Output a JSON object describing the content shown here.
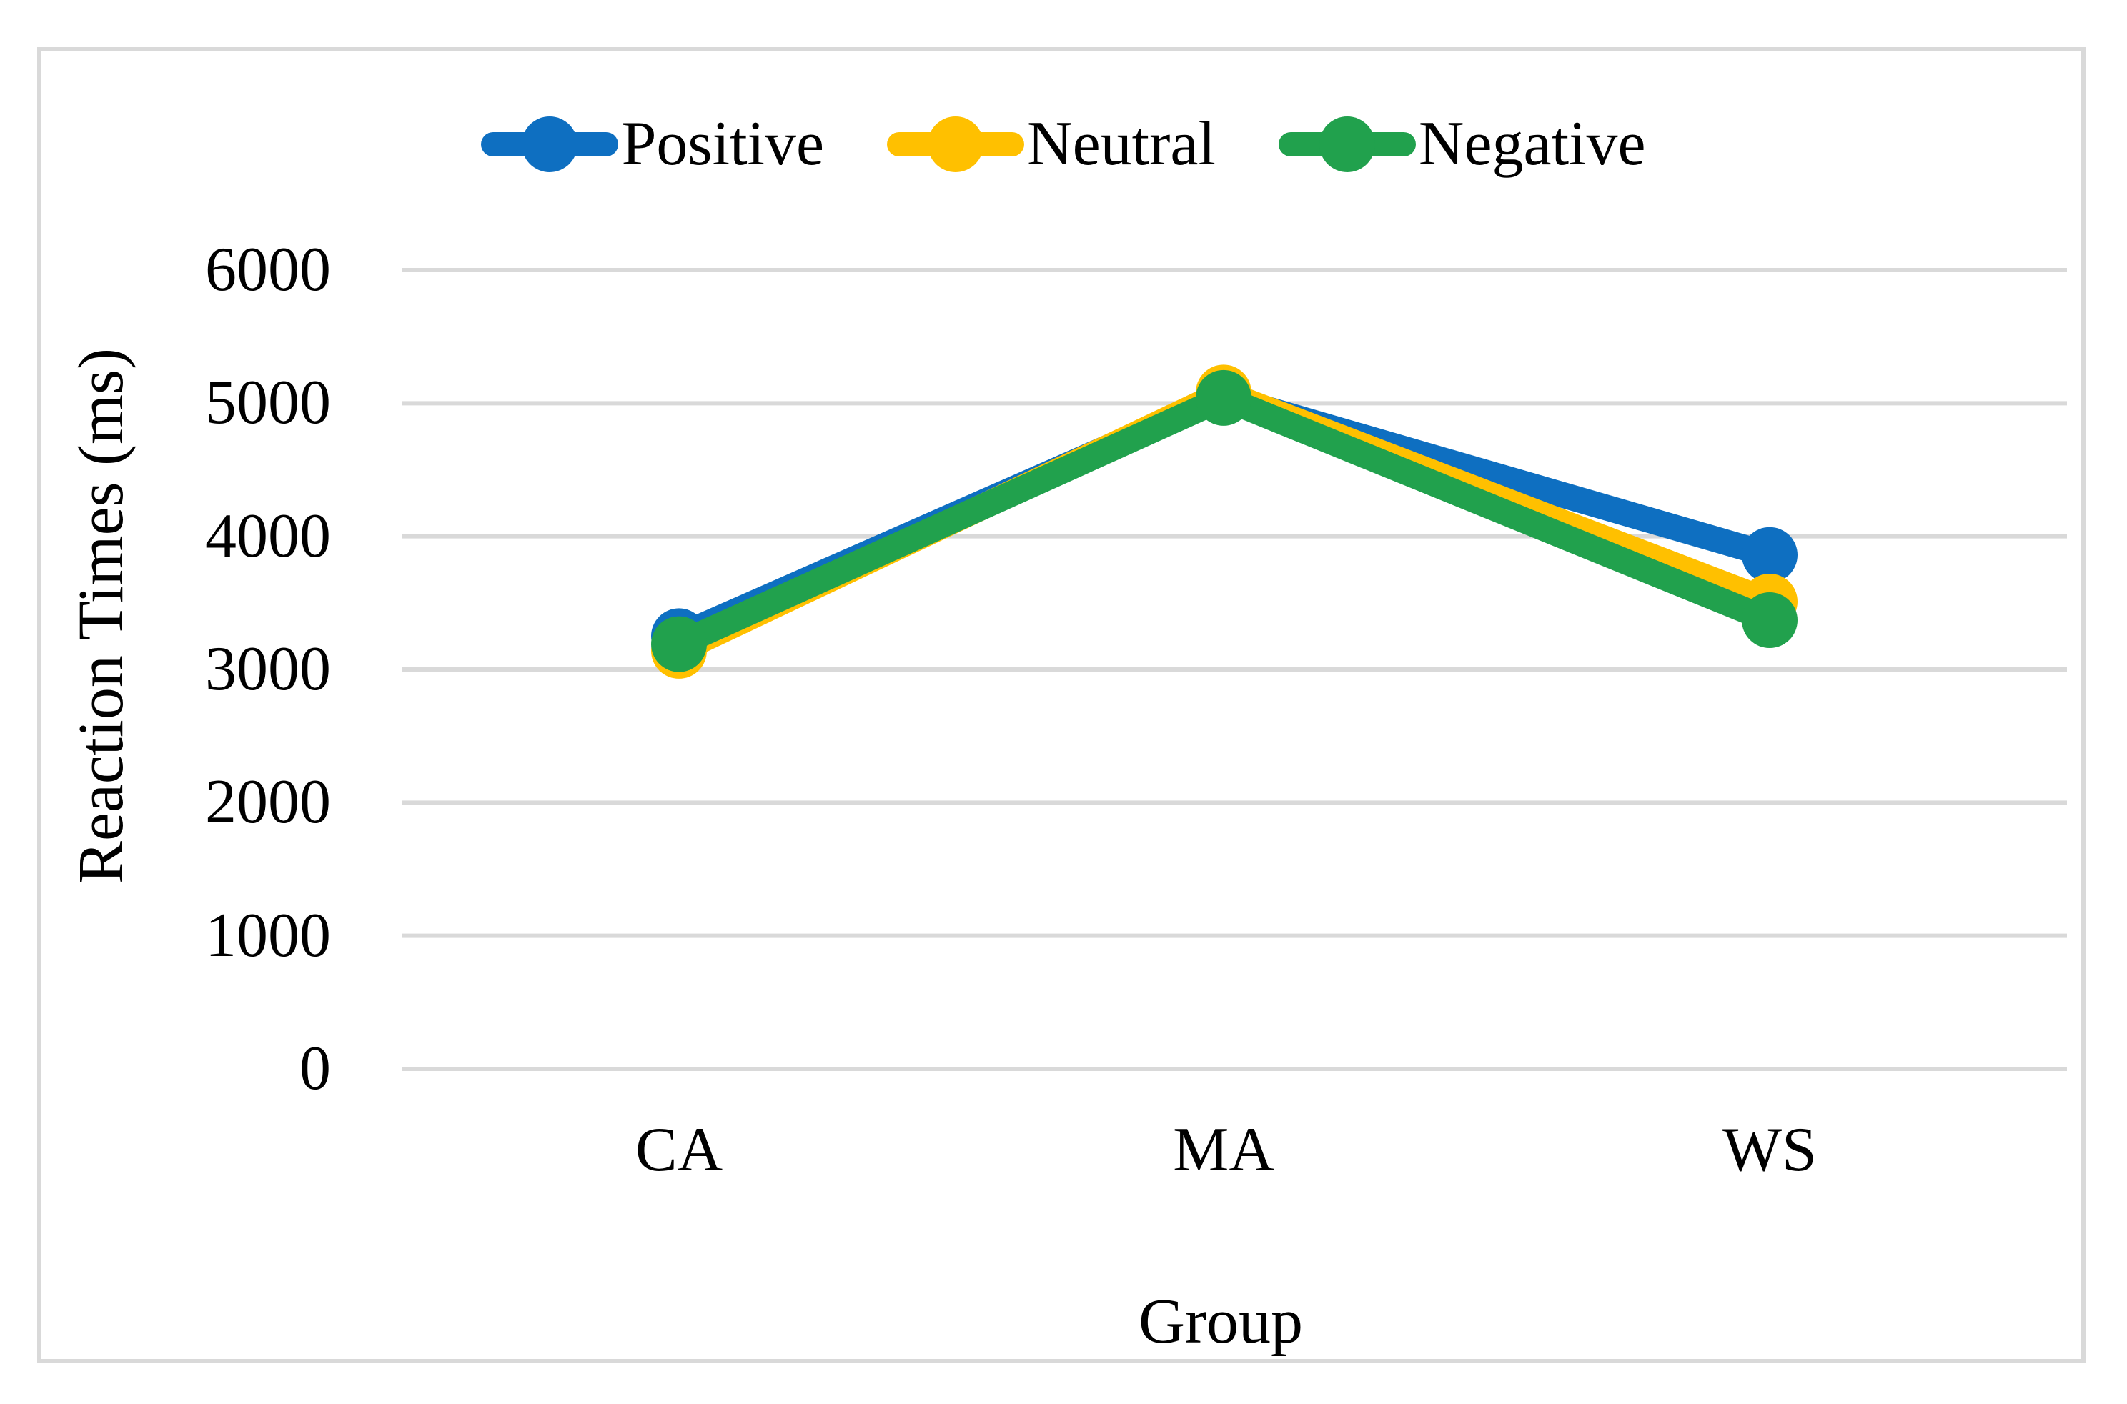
{
  "figure": {
    "background_color": "#ffffff",
    "border_color": "#d9d9d9"
  },
  "chart_data": {
    "type": "line",
    "categories": [
      "CA",
      "MA",
      "WS"
    ],
    "series": [
      {
        "name": "Positive",
        "color": "#0e6fc1",
        "values": [
          3250,
          5050,
          3860
        ]
      },
      {
        "name": "Neutral",
        "color": "#ffc000",
        "values": [
          3140,
          5080,
          3510
        ]
      },
      {
        "name": "Negative",
        "color": "#21a14d",
        "values": [
          3190,
          5040,
          3370
        ]
      }
    ],
    "xlabel": "Group",
    "ylabel": "Reaction Times (ms)",
    "ylim": [
      0,
      6000
    ],
    "yticks": [
      6000,
      5000,
      4000,
      3000,
      2000,
      1000,
      0
    ],
    "grid": "horizontal",
    "gridline_color": "#d9d9d9",
    "legend_position": "top",
    "marker": "circle"
  }
}
